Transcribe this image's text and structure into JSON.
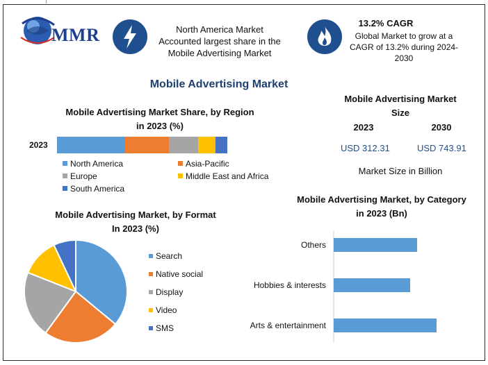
{
  "brand": {
    "logo_text": "MMR"
  },
  "header": {
    "info1": {
      "line1": "North America Market",
      "line2": "Accounted largest share in the",
      "line3": "Mobile Advertising Market"
    },
    "info2": {
      "title": "13.2% CAGR",
      "line1": "Global Market to grow at a",
      "line2": "CAGR of 13.2% during 2024-",
      "line3": "2030"
    }
  },
  "main_title": "Mobile Advertising Market",
  "size_panel": {
    "title_line1": "Mobile Advertising Market",
    "title_line2": "Size",
    "year1": "2023",
    "year2": "2030",
    "value1": "USD 312.31",
    "value2": "USD 743.91",
    "unit_note": "Market Size in Billion"
  },
  "colors": {
    "north_america": "#5b9bd5",
    "asia_pacific": "#ed7d31",
    "europe": "#a5a5a5",
    "middle_east": "#ffc000",
    "south_america": "#4472c4",
    "category_bar": "#5b9bd5"
  },
  "chart_data": [
    {
      "type": "bar",
      "orientation": "horizontal-stacked",
      "title_line1": "Mobile Advertising Market Share, by Region",
      "title_line2": "in 2023 (%)",
      "categories": [
        "2023"
      ],
      "series": [
        {
          "name": "North America",
          "values": [
            40
          ]
        },
        {
          "name": "Asia-Pacific",
          "values": [
            26
          ]
        },
        {
          "name": "Europe",
          "values": [
            17
          ]
        },
        {
          "name": "Middle East and Africa",
          "values": [
            10
          ]
        },
        {
          "name": "South America",
          "values": [
            7
          ]
        }
      ],
      "legend": "bottom"
    },
    {
      "type": "pie",
      "title_line1": "Mobile Advertising Market, by Format",
      "title_line2": "In 2023 (%)",
      "labels": [
        "Search",
        "Native social",
        "Display",
        "Video",
        "SMS"
      ],
      "values": [
        36,
        24,
        21,
        12,
        7
      ],
      "legend": "right"
    },
    {
      "type": "bar",
      "orientation": "horizontal",
      "title_line1": "Mobile Advertising Market, by Category",
      "title_line2": "in 2023 (Bn)",
      "categories": [
        "Others",
        "Hobbies & interests",
        "Arts & entertainment"
      ],
      "values": [
        120,
        110,
        148
      ]
    }
  ]
}
